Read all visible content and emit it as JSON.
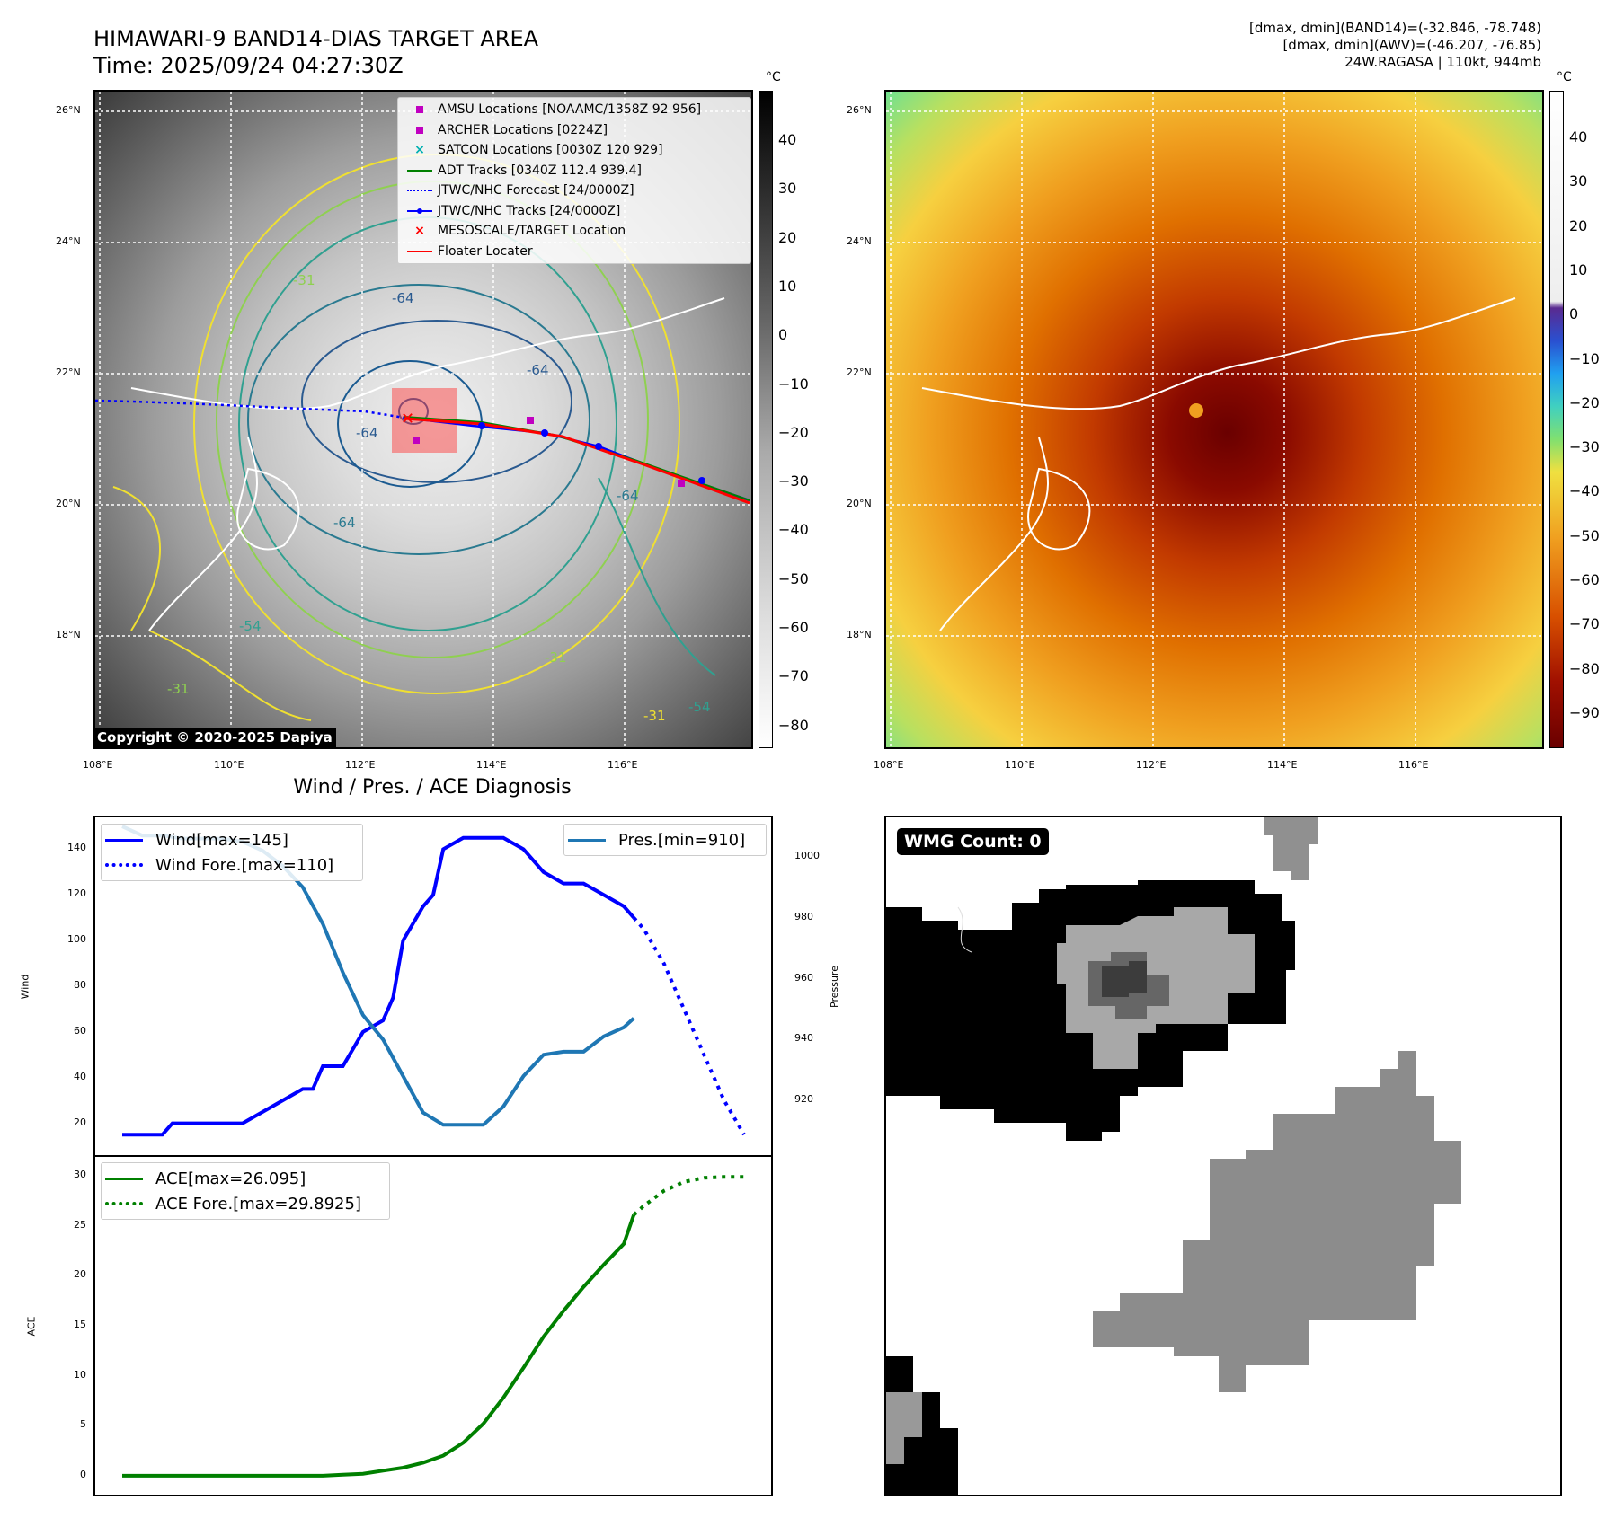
{
  "header": {
    "title_line1": "HIMAWARI-9 BAND14-DIAS TARGET AREA",
    "title_line2": "Time: 2025/09/24 04:27:30Z",
    "stats_line1": "[dmax, dmin](BAND14)=(-32.846, -78.748)",
    "stats_line2": "[dmax, dmin](AWV)=(-46.207, -76.85)",
    "stats_line3": "24W.RAGASA | 110kt, 944mb"
  },
  "map": {
    "lat_labels": [
      "26°N",
      "24°N",
      "22°N",
      "20°N",
      "18°N"
    ],
    "lon_labels": [
      "108°E",
      "110°E",
      "112°E",
      "114°E",
      "116°E"
    ],
    "contour_labels": [
      "-64",
      "-64",
      "-54",
      "-31",
      "-64",
      "-31",
      "-54",
      "-31",
      "-64",
      "-31",
      "-64"
    ],
    "copyright": "Copyright © 2020-2025 Dapiya",
    "legend": [
      {
        "label": "AMSU Locations [NOAAMC/1358Z 92 956]",
        "symbol": "square",
        "color": "#c000c0"
      },
      {
        "label": "ARCHER Locations [0224Z]",
        "symbol": "square",
        "color": "#c000c0"
      },
      {
        "label": "SATCON Locations [0030Z 120 929]",
        "symbol": "x",
        "color": "#00b0b0"
      },
      {
        "label": "ADT Tracks [0340Z 112.4 939.4]",
        "symbol": "line",
        "color": "#008000"
      },
      {
        "label": "JTWC/NHC Forecast [24/0000Z]",
        "symbol": "dotted",
        "color": "#0000ff"
      },
      {
        "label": "JTWC/NHC Tracks [24/0000Z]",
        "symbol": "line-dot",
        "color": "#0000ff"
      },
      {
        "label": "MESOSCALE/TARGET Location",
        "symbol": "x",
        "color": "#ff0000"
      },
      {
        "label": "Floater Locater",
        "symbol": "line",
        "color": "#ff0000"
      }
    ]
  },
  "colorbar_gray": {
    "unit": "°C",
    "ticks": [
      "40",
      "30",
      "20",
      "10",
      "0",
      "−10",
      "−20",
      "−30",
      "−40",
      "−50",
      "−60",
      "−70",
      "−80"
    ]
  },
  "colorbar_color": {
    "unit": "°C",
    "ticks": [
      "40",
      "30",
      "20",
      "10",
      "0",
      "−10",
      "−20",
      "−30",
      "−40",
      "−50",
      "−60",
      "−70",
      "−80",
      "−90"
    ]
  },
  "diagnosis": {
    "title": "Wind / Pres. / ACE Diagnosis",
    "wind_ylabel": "Wind",
    "pres_ylabel": "Pressure",
    "ace_ylabel": "ACE",
    "wind_ticks": [
      "140",
      "120",
      "100",
      "80",
      "60",
      "40",
      "20"
    ],
    "pres_ticks": [
      "1000",
      "980",
      "960",
      "940",
      "920"
    ],
    "ace_ticks": [
      "30",
      "25",
      "20",
      "15",
      "10",
      "5",
      "0"
    ],
    "legend_wind": "Wind[max=145]",
    "legend_wind_fore": "Wind Fore.[max=110]",
    "legend_pres": "Pres.[min=910]",
    "legend_ace": "ACE[max=26.095]",
    "legend_ace_fore": "ACE Fore.[max=29.8925]"
  },
  "wmg": {
    "label": "WMG Count: 0"
  },
  "chart_data": [
    {
      "type": "line",
      "title": "Wind / Pres. / ACE Diagnosis",
      "x": [
        0,
        1,
        2,
        3,
        4,
        5,
        6,
        7,
        8,
        9,
        10,
        11,
        12,
        13,
        14,
        15,
        16,
        17,
        18,
        19,
        20,
        21,
        22,
        23,
        24,
        25,
        26,
        27,
        28,
        29,
        30,
        31,
        32,
        33,
        34,
        35,
        36,
        37,
        38,
        39,
        40,
        41,
        42,
        43,
        44,
        45,
        46,
        47,
        48,
        49,
        50,
        51,
        52,
        53,
        54,
        55,
        56,
        57,
        58,
        59,
        60,
        61,
        62
      ],
      "series": [
        {
          "name": "Wind",
          "axis": "left",
          "color": "#0000ff",
          "style": "solid",
          "x": [
            0,
            2,
            4,
            5,
            6,
            8,
            10,
            12,
            14,
            16,
            18,
            19,
            20,
            22,
            24,
            26,
            27,
            28,
            30,
            31,
            32,
            34,
            36,
            38,
            40,
            42,
            44,
            46,
            48,
            50,
            51
          ],
          "values": [
            15,
            15,
            15,
            20,
            20,
            20,
            20,
            20,
            25,
            30,
            35,
            35,
            45,
            45,
            60,
            65,
            75,
            100,
            115,
            120,
            140,
            145,
            145,
            145,
            140,
            130,
            125,
            125,
            120,
            115,
            110
          ]
        },
        {
          "name": "Wind Fore.",
          "axis": "left",
          "color": "#0000ff",
          "style": "dotted",
          "x": [
            51,
            52,
            54,
            56,
            58,
            60,
            62
          ],
          "values": [
            110,
            105,
            90,
            70,
            50,
            30,
            15
          ]
        },
        {
          "name": "Pres.",
          "axis": "right",
          "color": "#1f77b4",
          "style": "solid",
          "x": [
            0,
            2,
            4,
            6,
            8,
            10,
            12,
            14,
            16,
            18,
            20,
            22,
            24,
            26,
            28,
            30,
            32,
            34,
            36,
            38,
            40,
            42,
            44,
            46,
            48,
            50,
            51
          ],
          "values": [
            1010,
            1007,
            1007,
            1006,
            1006,
            1006,
            1005,
            1002,
            997,
            990,
            978,
            962,
            948,
            940,
            928,
            916,
            912,
            912,
            912,
            918,
            928,
            935,
            936,
            936,
            941,
            944,
            947
          ]
        },
        {
          "name": "ACE",
          "axis": "left",
          "color": "#008000",
          "style": "solid",
          "panel": "ace",
          "x": [
            0,
            5,
            10,
            15,
            20,
            22,
            24,
            26,
            28,
            30,
            32,
            34,
            36,
            38,
            40,
            42,
            44,
            46,
            48,
            50,
            51
          ],
          "values": [
            0,
            0,
            0,
            0,
            0,
            0.1,
            0.2,
            0.5,
            0.8,
            1.3,
            2.0,
            3.3,
            5.2,
            7.8,
            10.8,
            13.9,
            16.5,
            18.9,
            21.1,
            23.2,
            26.1
          ]
        },
        {
          "name": "ACE Fore.",
          "axis": "left",
          "color": "#008000",
          "style": "dotted",
          "panel": "ace",
          "x": [
            51,
            52,
            54,
            56,
            58,
            60,
            62
          ],
          "values": [
            26.1,
            27.0,
            28.5,
            29.4,
            29.8,
            29.9,
            29.9
          ]
        }
      ],
      "ylim_wind": [
        10,
        150
      ],
      "ylim_pres": [
        905,
        1010
      ],
      "ylim_ace": [
        -1,
        31
      ]
    }
  ]
}
